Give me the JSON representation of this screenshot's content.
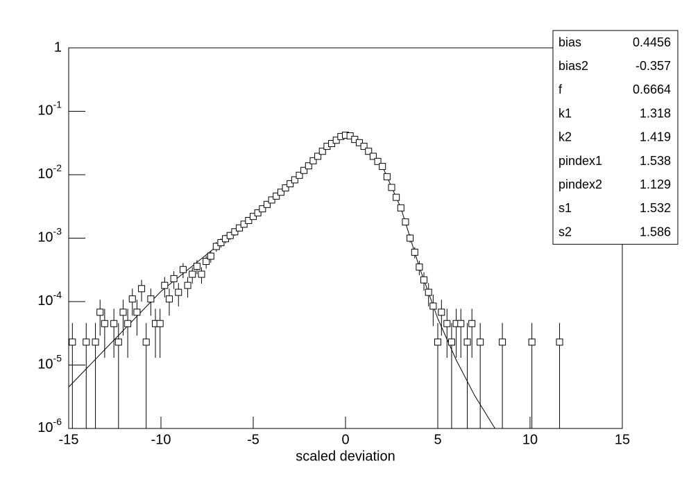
{
  "chart_data": {
    "type": "scatter",
    "xlabel": "scaled deviation",
    "xlim": [
      -15,
      15
    ],
    "xticks": [
      -15,
      -10,
      -5,
      0,
      5,
      10,
      15
    ],
    "ylim": [
      1e-06,
      1
    ],
    "log_y": true,
    "yticks": [
      {
        "value": 1e-06,
        "label": "10",
        "exponent": "-6"
      },
      {
        "value": 1e-05,
        "label": "10",
        "exponent": "-5"
      },
      {
        "value": 0.0001,
        "label": "10",
        "exponent": "-4"
      },
      {
        "value": 0.001,
        "label": "10",
        "exponent": "-3"
      },
      {
        "value": 0.01,
        "label": "10",
        "exponent": "-2"
      },
      {
        "value": 0.1,
        "label": "10",
        "exponent": "-1"
      },
      1
    ],
    "points": {
      "color": "#000000",
      "x": [
        -14.8,
        -14.05,
        -13.55,
        -13.3,
        -13.05,
        -12.55,
        -12.3,
        -12.05,
        -11.8,
        -11.55,
        -11.3,
        -11.05,
        -10.8,
        -10.55,
        -10.3,
        -10.05,
        -9.8,
        -9.55,
        -9.3,
        -9.05,
        -8.8,
        -8.55,
        -8.3,
        -8.05,
        -7.8,
        -7.55,
        -7.3,
        -7,
        -6.75,
        -6.5,
        -6.25,
        -6,
        -5.75,
        -5.5,
        -5.25,
        -5,
        -4.75,
        -4.5,
        -4.25,
        -4,
        -3.75,
        -3.5,
        -3.25,
        -3,
        -2.75,
        -2.5,
        -2.25,
        -2,
        -1.75,
        -1.5,
        -1.25,
        -1,
        -0.75,
        -0.5,
        -0.25,
        0,
        0.25,
        0.5,
        0.75,
        1,
        1.25,
        1.5,
        1.75,
        2,
        2.25,
        2.5,
        2.75,
        3,
        3.25,
        3.5,
        3.75,
        4,
        4.25,
        4.5,
        4.75,
        5,
        5.2,
        5.5,
        5.75,
        6,
        6.25,
        6.6,
        6.85,
        7.3,
        8.5,
        10.1,
        11.6
      ],
      "values": [
        2.3e-05,
        2.3e-05,
        2.3e-05,
        6.8e-05,
        4.5e-05,
        4.5e-05,
        2.3e-05,
        6.8e-05,
        4.5e-05,
        0.00011,
        6.8e-05,
        0.00016,
        2.3e-05,
        0.00011,
        4.5e-05,
        4.5e-05,
        0.00018,
        0.00011,
        0.00023,
        0.00014,
        0.00032,
        0.00018,
        0.00027,
        0.00036,
        0.00027,
        0.00043,
        0.00052,
        0.00074,
        0.00085,
        0.00098,
        0.0011,
        0.00126,
        0.00145,
        0.00166,
        0.0019,
        0.0022,
        0.0025,
        0.0029,
        0.0034,
        0.004,
        0.0046,
        0.0053,
        0.0062,
        0.0072,
        0.0083,
        0.0098,
        0.0117,
        0.0138,
        0.0166,
        0.0195,
        0.0234,
        0.028,
        0.031,
        0.035,
        0.04,
        0.042,
        0.041,
        0.036,
        0.032,
        0.028,
        0.0234,
        0.0195,
        0.0162,
        0.0135,
        0.0093,
        0.0063,
        0.0044,
        0.003,
        0.0018,
        0.001,
        0.0006,
        0.00035,
        0.00022,
        0.00014,
        8.5e-05,
        2.3e-05,
        6.8e-05,
        4.5e-05,
        2.3e-05,
        4.5e-05,
        4.5e-05,
        2.3e-05,
        4.5e-05,
        2.3e-05,
        2.3e-05,
        2.3e-05,
        2.3e-05
      ],
      "errors": [
        2.3e-05,
        2.3e-05,
        2.3e-05,
        3.9e-05,
        3.2e-05,
        3.2e-05,
        2.3e-05,
        3.9e-05,
        3.2e-05,
        5e-05,
        3.9e-05,
        6e-05,
        2.3e-05,
        5e-05,
        3.2e-05,
        3.2e-05,
        6.4e-05,
        5e-05,
        7.2e-05,
        5.6e-05,
        8.5e-05,
        6.4e-05,
        7.8e-05,
        9e-05,
        7.8e-05,
        9.9e-05,
        0.00011,
        0.00013,
        0.00014,
        0.00015,
        0.00016,
        0.00017,
        0.00018,
        0.00019,
        0.00021,
        0.00022,
        0.00024,
        0.00026,
        0.00028,
        0.0003,
        0.00032,
        0.00035,
        0.00038,
        0.0004,
        0.00043,
        0.00047,
        0.00052,
        0.00056,
        0.00061,
        0.00067,
        0.00073,
        0.0008,
        0.00084,
        0.00089,
        0.00095,
        0.00098,
        0.00096,
        0.0009,
        0.00085,
        0.0008,
        0.00073,
        0.00067,
        0.00061,
        0.00055,
        0.00046,
        0.00038,
        0.00032,
        0.00026,
        0.0002,
        0.00015,
        0.00012,
        8.9e-05,
        7.1e-05,
        5.6e-05,
        4.4e-05,
        2.3e-05,
        3.9e-05,
        3.2e-05,
        2.3e-05,
        3.2e-05,
        3.2e-05,
        2.3e-05,
        3.2e-05,
        2.3e-05,
        2.3e-05,
        2.3e-05,
        2.3e-05
      ]
    },
    "fit": {
      "color": "#000000",
      "x": [
        -15,
        -10,
        -7.5,
        -5,
        -2.5,
        -1,
        -0.5,
        0,
        0.5,
        1,
        2,
        3,
        4,
        5,
        6,
        7,
        8.1
      ],
      "values": [
        4.5e-06,
        0.000145,
        0.00056,
        0.0022,
        0.0098,
        0.028,
        0.038,
        0.042,
        0.038,
        0.028,
        0.0135,
        0.003,
        0.00035,
        5.4e-05,
        1.2e-05,
        3.3e-06,
        1e-06
      ]
    },
    "stats": {
      "names": [
        "bias",
        "bias2",
        "f",
        "k1",
        "k2",
        "pindex1",
        "pindex2",
        "s1",
        "s2"
      ],
      "values": [
        0.4456,
        -0.357,
        0.6664,
        1.318,
        1.419,
        1.538,
        1.129,
        1.532,
        1.586
      ]
    }
  }
}
